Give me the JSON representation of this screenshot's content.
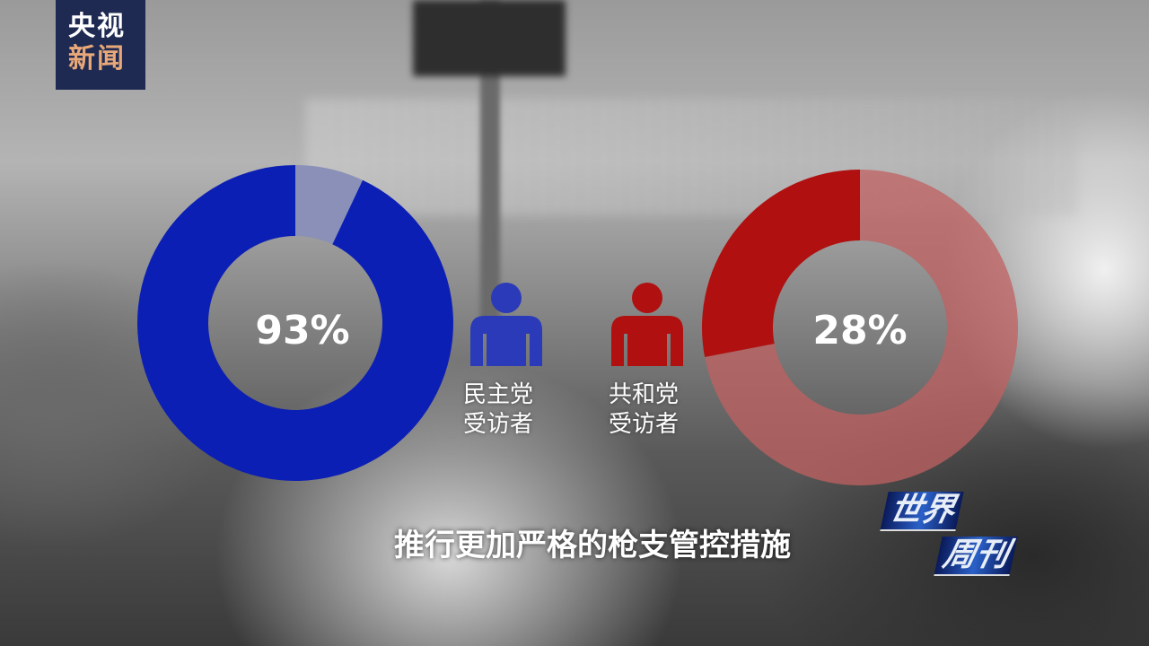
{
  "logo": {
    "line1": "央视",
    "line2": "新闻"
  },
  "chart_data": [
    {
      "type": "pie",
      "variant": "donut",
      "value_percent": 93,
      "label": "93%",
      "series_color": "#0c1fb4",
      "remainder_color": "#8a90b8",
      "legend": [
        "民主党",
        "受访者"
      ]
    },
    {
      "type": "pie",
      "variant": "donut",
      "value_percent": 28,
      "label": "28%",
      "series_color": "#b01010",
      "remainder_color": "#c06060",
      "legend": [
        "共和党",
        "受访者"
      ]
    }
  ],
  "icons": {
    "democrat": "person-icon",
    "republican": "person-icon",
    "democrat_color": "#2a3ab8",
    "republican_color": "#b01010"
  },
  "caption": "推行更加严格的枪支管控措施",
  "show_logo": {
    "line1": "世界",
    "line2": "周刊"
  }
}
